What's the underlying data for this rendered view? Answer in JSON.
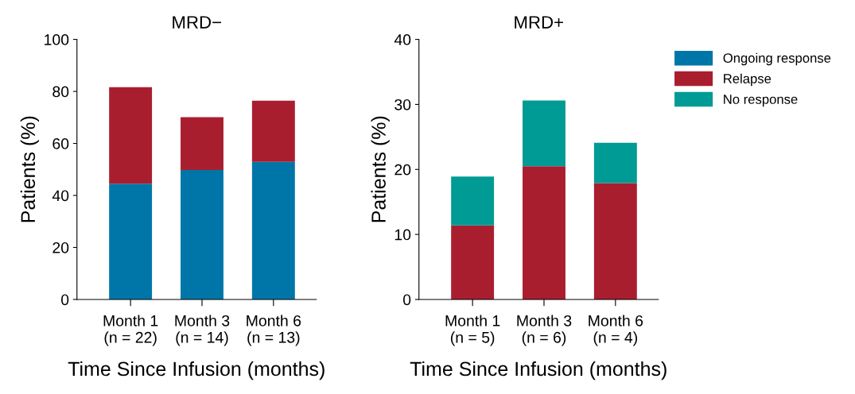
{
  "chart_data": [
    {
      "type": "bar",
      "title": "MRD−",
      "xlabel": "Time Since Infusion (months)",
      "ylabel": "Patients (%)",
      "stacked": true,
      "categories": [
        "Month 1\n(n = 22)",
        "Month 3\n(n = 14)",
        "Month 6\n(n = 13)"
      ],
      "series": [
        {
          "name": "Ongoing response",
          "color": "#0076a8",
          "values": [
            44.5,
            49.8,
            52.9
          ]
        },
        {
          "name": "Relapse",
          "color": "#a91e2f",
          "values": [
            37.1,
            20.3,
            23.5
          ]
        }
      ],
      "ylim": [
        0,
        100
      ],
      "yticks": [
        0,
        20,
        40,
        60,
        80,
        100
      ],
      "grid": false,
      "legend": "right"
    },
    {
      "type": "bar",
      "title": "MRD+",
      "xlabel": "Time Since Infusion (months)",
      "ylabel": "Patients (%)",
      "stacked": true,
      "categories": [
        "Month 1\n(n = 5)",
        "Month 3\n(n = 6)",
        "Month 6\n(n = 4)"
      ],
      "series": [
        {
          "name": "Relapse",
          "color": "#a91e2f",
          "values": [
            11.4,
            20.5,
            17.9
          ]
        },
        {
          "name": "No response",
          "color": "#009b94",
          "values": [
            7.5,
            10.1,
            6.2
          ]
        }
      ],
      "ylim": [
        0,
        40
      ],
      "yticks": [
        0,
        10,
        20,
        30,
        40
      ],
      "grid": false,
      "legend": "right"
    }
  ]
}
